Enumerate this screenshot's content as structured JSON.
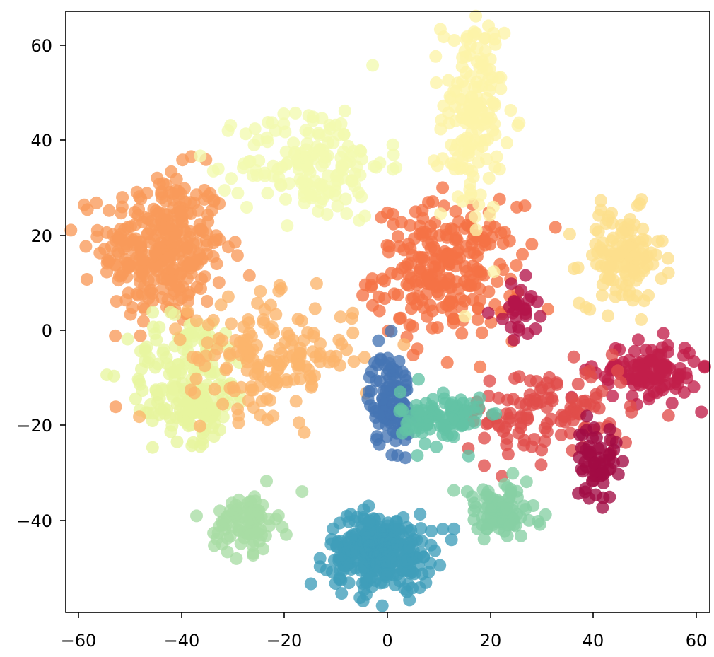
{
  "chart_data": {
    "type": "scatter",
    "title": "",
    "xlabel": "",
    "ylabel": "",
    "xlim": [
      -62,
      63
    ],
    "ylim": [
      -60,
      67
    ],
    "xticks": [
      -60,
      -40,
      -20,
      0,
      20,
      40,
      60
    ],
    "yticks": [
      -40,
      -20,
      0,
      20,
      40,
      60
    ],
    "xtick_labels": [
      "−60",
      "−40",
      "−20",
      "0",
      "20",
      "40",
      "60"
    ],
    "ytick_labels": [
      "−40",
      "−20",
      "0",
      "20",
      "40",
      "60"
    ],
    "grid": false,
    "legend": "none",
    "colormap": "Spectral",
    "clusters": [
      {
        "color": "#f89a5a",
        "center": [
          -43,
          17
        ],
        "spread": [
          6,
          8
        ],
        "n": 320
      },
      {
        "color": "#f57245",
        "center": [
          12,
          12
        ],
        "spread": [
          7,
          7
        ],
        "n": 240
      },
      {
        "color": "#fdf4a8",
        "center": [
          17,
          45
        ],
        "spread": [
          3,
          11
        ],
        "n": 160
      },
      {
        "color": "#fcdf8c",
        "center": [
          46,
          15
        ],
        "spread": [
          4,
          5
        ],
        "n": 130
      },
      {
        "color": "#f2fab0",
        "center": [
          -14,
          35
        ],
        "spread": [
          7,
          6
        ],
        "n": 160
      },
      {
        "color": "#e8f6a0",
        "center": [
          -38,
          -9
        ],
        "spread": [
          6,
          6
        ],
        "n": 150
      },
      {
        "color": "#e7f59d",
        "center": [
          -37,
          -18
        ],
        "spread": [
          4,
          3
        ],
        "n": 60
      },
      {
        "color": "#fbb56c",
        "center": [
          -22,
          -6
        ],
        "spread": [
          8,
          6
        ],
        "n": 170
      },
      {
        "color": "#c21f4a",
        "center": [
          51,
          -9
        ],
        "spread": [
          5,
          3
        ],
        "n": 120
      },
      {
        "color": "#e04d4a",
        "center": [
          32,
          -18
        ],
        "spread": [
          8,
          5
        ],
        "n": 120
      },
      {
        "color": "#a20b44",
        "center": [
          41,
          -28
        ],
        "spread": [
          2,
          4
        ],
        "n": 60
      },
      {
        "color": "#b3144a",
        "center": [
          26,
          4
        ],
        "spread": [
          2,
          3
        ],
        "n": 30
      },
      {
        "color": "#4575b4",
        "center": [
          1,
          -15
        ],
        "spread": [
          2,
          5
        ],
        "n": 110
      },
      {
        "color": "#63c3a5",
        "center": [
          11,
          -19
        ],
        "spread": [
          4,
          3
        ],
        "n": 100
      },
      {
        "color": "#3f9eba",
        "center": [
          -1,
          -47
        ],
        "spread": [
          5,
          4
        ],
        "n": 300
      },
      {
        "color": "#a8dca4",
        "center": [
          -27,
          -41
        ],
        "spread": [
          3,
          3
        ],
        "n": 90
      },
      {
        "color": "#87d0a4",
        "center": [
          22,
          -39
        ],
        "spread": [
          4,
          3
        ],
        "n": 90
      }
    ]
  }
}
